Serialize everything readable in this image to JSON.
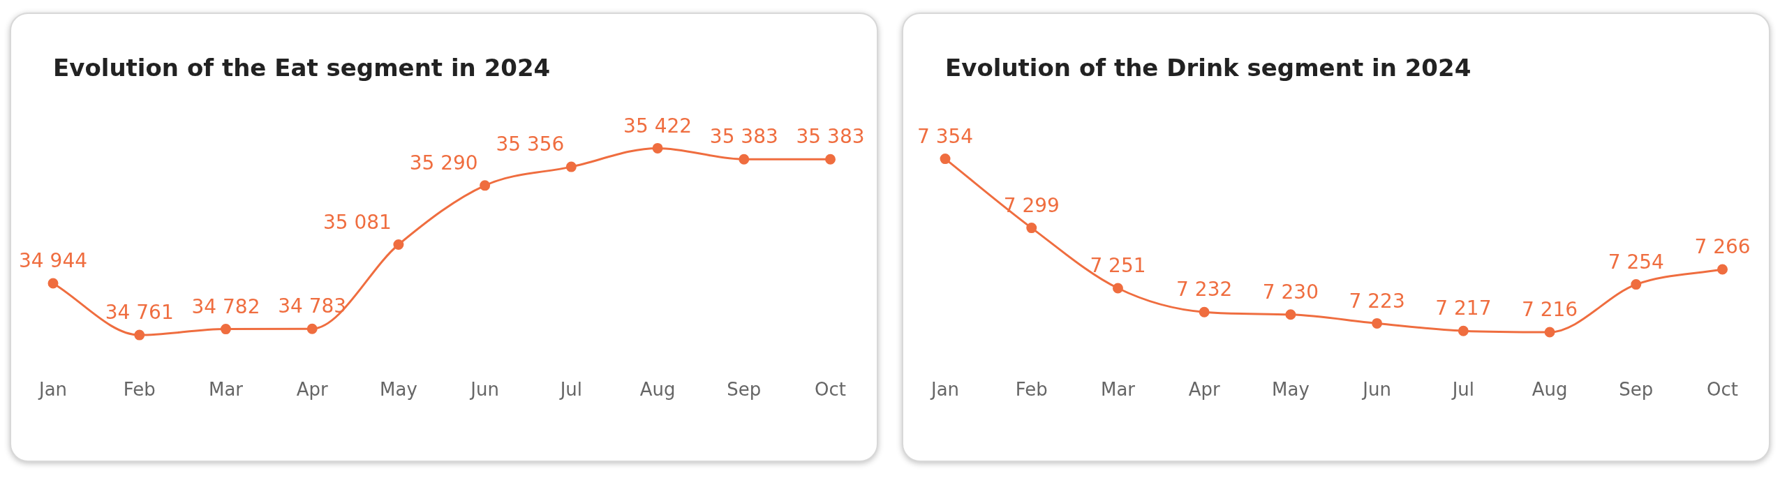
{
  "chart_data": [
    {
      "type": "line",
      "title": "Evolution of the Eat segment in 2024",
      "categories": [
        "Jan",
        "Feb",
        "Mar",
        "Apr",
        "May",
        "Jun",
        "Jul",
        "Aug",
        "Sep",
        "Oct"
      ],
      "marker": "circle",
      "grid": false,
      "legend": false,
      "series": [
        {
          "color": "#ef6d3f",
          "values": [
            34944,
            34761,
            34782,
            34783,
            35081,
            35290,
            35356,
            35422,
            35383,
            35383
          ],
          "value_labels": [
            "34 944",
            "34 761",
            "34 782",
            "34 783",
            "35 081",
            "35 290",
            "35 356",
            "35 422",
            "35 383",
            "35 383"
          ]
        }
      ]
    },
    {
      "type": "line",
      "title": "Evolution of the Drink segment in 2024",
      "categories": [
        "Jan",
        "Feb",
        "Mar",
        "Apr",
        "May",
        "Jun",
        "Jul",
        "Aug",
        "Sep",
        "Oct"
      ],
      "marker": "circle",
      "grid": false,
      "legend": false,
      "series": [
        {
          "color": "#ef6d3f",
          "values": [
            7354,
            7299,
            7251,
            7232,
            7230,
            7223,
            7217,
            7216,
            7254,
            7266
          ],
          "value_labels": [
            "7 354",
            "7 299",
            "7 251",
            "7 232",
            "7 230",
            "7 223",
            "7 217",
            "7 216",
            "7 254",
            "7 266"
          ]
        }
      ]
    }
  ]
}
